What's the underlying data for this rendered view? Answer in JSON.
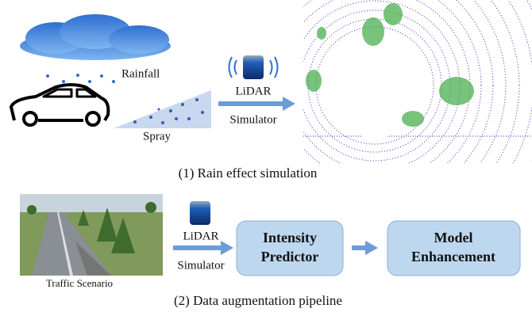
{
  "section1": {
    "rainfall_label": "Rainfall",
    "spray_label": "Spray",
    "lidar_label": "LiDAR",
    "simulator_label": "Simulator",
    "caption": "(1) Rain effect simulation"
  },
  "section2": {
    "scene_label": "Traffic Scenario",
    "lidar_label": "LiDAR",
    "simulator_label": "Simulator",
    "boxes": [
      {
        "lines": [
          "Intensity",
          "Predictor"
        ]
      },
      {
        "lines": [
          "Model",
          "Enhancement"
        ]
      }
    ],
    "caption": "(2) Data augmentation pipeline"
  }
}
